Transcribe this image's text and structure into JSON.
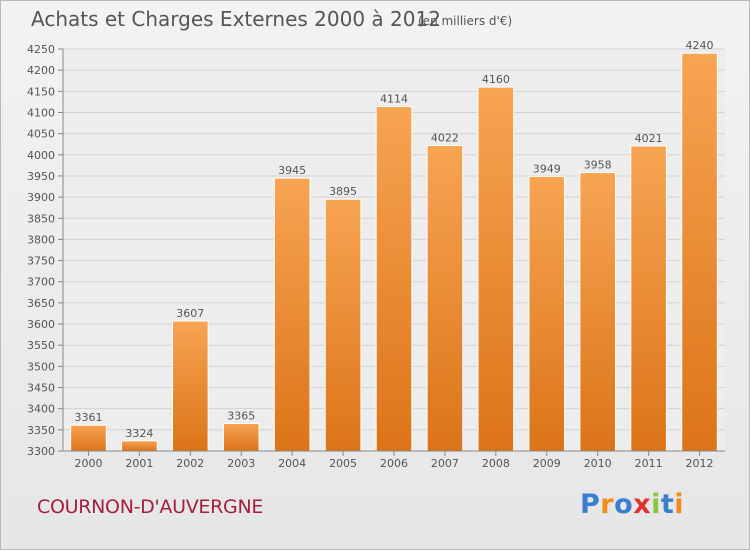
{
  "chart_data": {
    "type": "bar",
    "title": "Achats et Charges Externes 2000 à 2012",
    "subtitle": "(en milliers d'€)",
    "categories": [
      "2000",
      "2001",
      "2002",
      "2003",
      "2004",
      "2005",
      "2006",
      "2007",
      "2008",
      "2009",
      "2010",
      "2011",
      "2012"
    ],
    "values": [
      3361,
      3324,
      3607,
      3365,
      3945,
      3895,
      4114,
      4022,
      4160,
      3949,
      3958,
      4021,
      4240
    ],
    "ylim": [
      3300,
      4250
    ],
    "yticks": [
      3300,
      3350,
      3400,
      3450,
      3500,
      3550,
      3600,
      3650,
      3700,
      3750,
      3800,
      3850,
      3900,
      3950,
      4000,
      4050,
      4100,
      4150,
      4200,
      4250
    ],
    "grid": true,
    "bar_color_top": "#f7a453",
    "bar_color_bottom": "#dc7418"
  },
  "footer": {
    "place": "COURNON-D'AUVERGNE",
    "brand": "Proxiti",
    "brand_colors": [
      "#3a7fcf",
      "#f08c1c",
      "#3a7fcf",
      "#e1322f",
      "#8cc63f",
      "#3a7fcf",
      "#f08c1c"
    ]
  }
}
